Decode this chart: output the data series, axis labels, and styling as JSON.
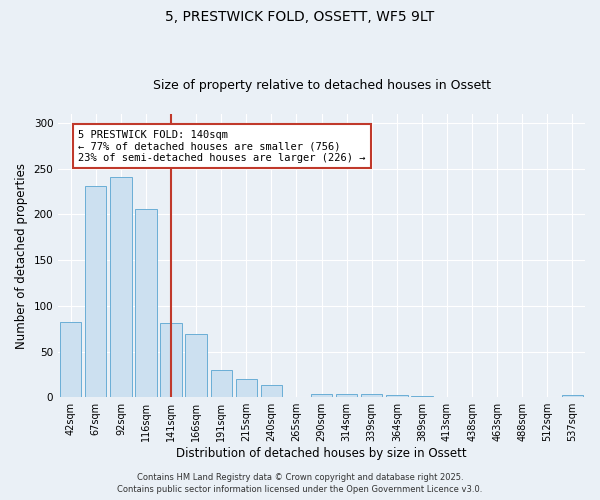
{
  "title1": "5, PRESTWICK FOLD, OSSETT, WF5 9LT",
  "title2": "Size of property relative to detached houses in Ossett",
  "xlabel": "Distribution of detached houses by size in Ossett",
  "ylabel": "Number of detached properties",
  "categories": [
    "42sqm",
    "67sqm",
    "92sqm",
    "116sqm",
    "141sqm",
    "166sqm",
    "191sqm",
    "215sqm",
    "240sqm",
    "265sqm",
    "290sqm",
    "314sqm",
    "339sqm",
    "364sqm",
    "389sqm",
    "413sqm",
    "438sqm",
    "463sqm",
    "488sqm",
    "512sqm",
    "537sqm"
  ],
  "values": [
    82,
    231,
    241,
    206,
    81,
    69,
    30,
    20,
    13,
    0,
    4,
    4,
    3,
    2,
    1,
    0,
    0,
    0,
    0,
    0,
    2
  ],
  "bar_color": "#cce0f0",
  "bar_edge_color": "#6aaed6",
  "vline_color": "#c0392b",
  "vline_x_index": 4,
  "annotation_text": "5 PRESTWICK FOLD: 140sqm\n← 77% of detached houses are smaller (756)\n23% of semi-detached houses are larger (226) →",
  "annotation_box_color": "#c0392b",
  "ylim": [
    0,
    310
  ],
  "yticks": [
    0,
    50,
    100,
    150,
    200,
    250,
    300
  ],
  "footer1": "Contains HM Land Registry data © Crown copyright and database right 2025.",
  "footer2": "Contains public sector information licensed under the Open Government Licence v3.0.",
  "background_color": "#eaf0f6",
  "plot_bg_color": "#eaf0f6",
  "grid_color": "#ffffff",
  "title1_fontsize": 10,
  "title2_fontsize": 9,
  "tick_fontsize": 7,
  "ylabel_fontsize": 8.5,
  "xlabel_fontsize": 8.5,
  "footer_fontsize": 6,
  "annotation_fontsize": 7.5
}
